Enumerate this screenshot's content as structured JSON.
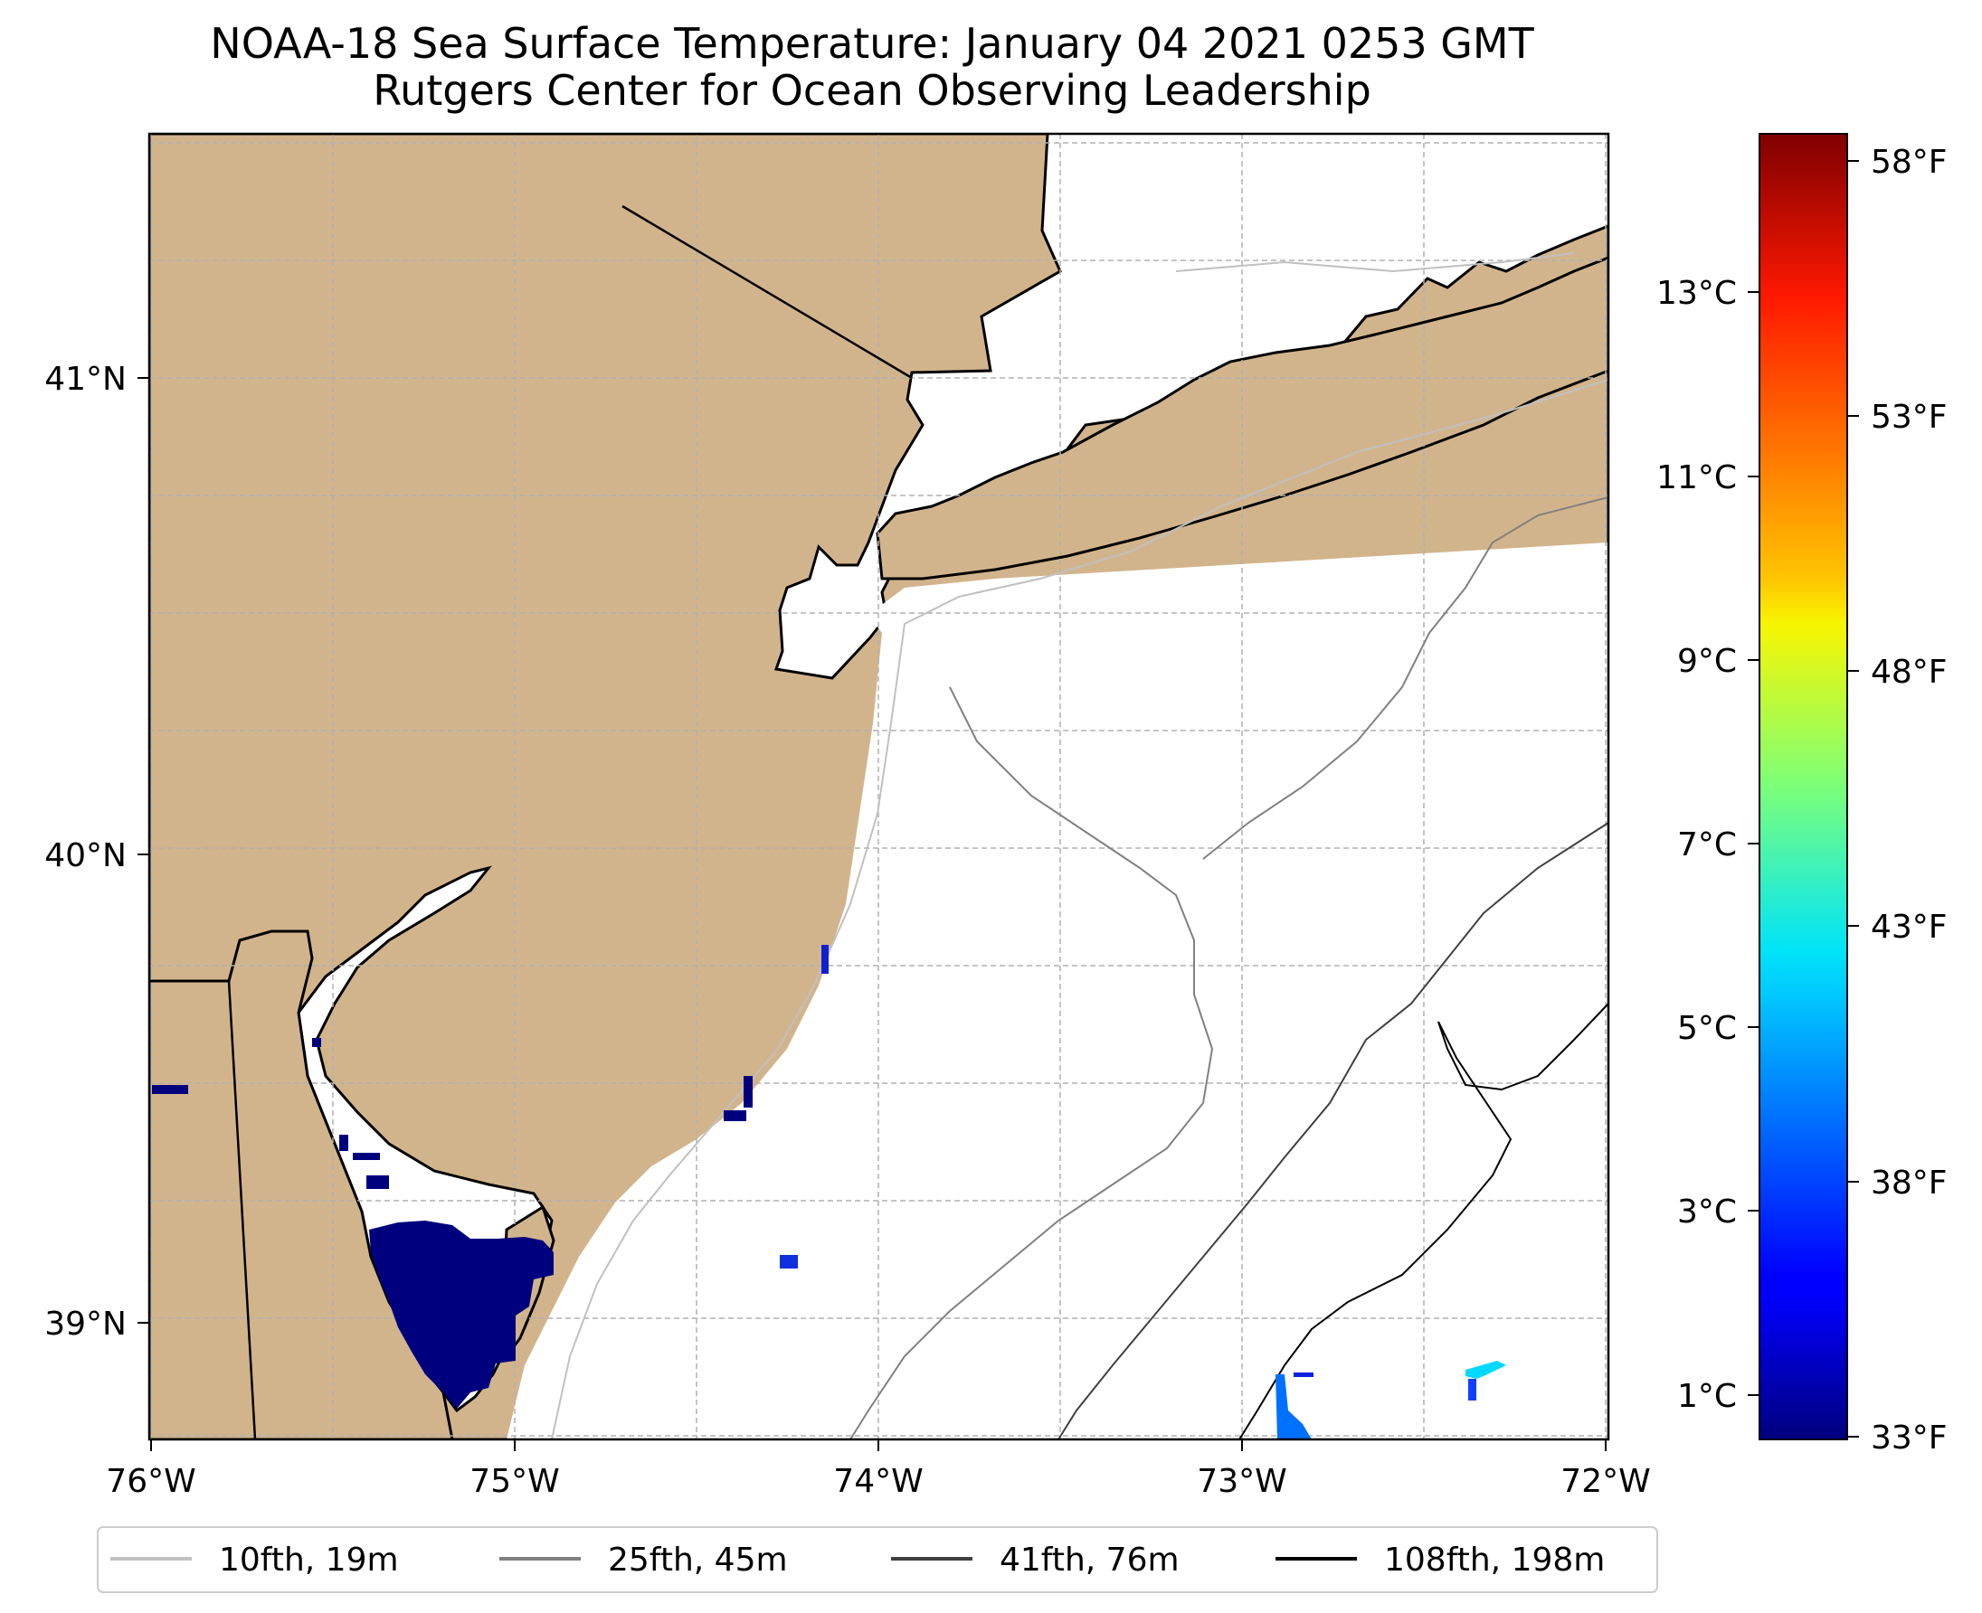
{
  "title": {
    "line1": "NOAA-18 Sea Surface Temperature: January 04 2021 0253 GMT",
    "line2": "Rutgers Center for Ocean Observing Leadership"
  },
  "colors": {
    "land": "#d2b48c",
    "ocean": "#ffffff",
    "coastline": "#000000",
    "grid": "#b0b0b0",
    "cold_sst": "#00007f"
  },
  "map": {
    "lon_ticks": [
      "76°W",
      "75°W",
      "74°W",
      "73°W",
      "72°W"
    ],
    "lat_ticks": [
      "41°N",
      "40°N",
      "39°N"
    ]
  },
  "colorbar": {
    "colormap": "jet",
    "celsius_ticks": [
      "13°C",
      "11°C",
      "9°C",
      "7°C",
      "5°C",
      "3°C",
      "1°C"
    ],
    "fahrenheit_ticks": [
      "58°F",
      "53°F",
      "48°F",
      "43°F",
      "38°F",
      "33°F"
    ]
  },
  "legend": [
    {
      "label": "10fth, 19m",
      "color": "#c0c0c0"
    },
    {
      "label": "25fth, 45m",
      "color": "#808080"
    },
    {
      "label": "41fth, 76m",
      "color": "#404040"
    },
    {
      "label": "108fth, 198m",
      "color": "#000000"
    }
  ]
}
